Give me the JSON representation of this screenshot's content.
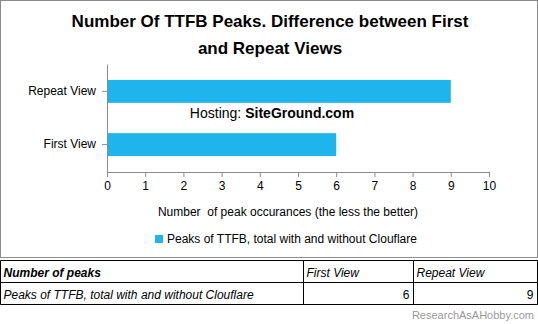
{
  "chart_data": {
    "type": "bar",
    "orientation": "horizontal",
    "title": "Number Of TTFB Peaks. Difference between First and Repeat Views",
    "categories": [
      "First View",
      "Repeat View"
    ],
    "series": [
      {
        "name": "Peaks of TTFB, total with and without Clouflare",
        "color": "#1fb4ec",
        "values": [
          6,
          9
        ]
      }
    ],
    "xlabel": "Number  of peak occurances (the less the better)",
    "xlim": [
      0,
      10
    ],
    "xticks": [
      0,
      1,
      2,
      3,
      4,
      5,
      6,
      7,
      8,
      9,
      10
    ],
    "grid": false,
    "legend": "bottom",
    "annotation": {
      "label": "Hosting:",
      "value": "SiteGround.com"
    }
  },
  "table": {
    "columns": [
      "Number of peaks",
      "First View",
      "Repeat View"
    ],
    "rows": [
      [
        "Peaks of TTFB, total with and without Clouflare",
        "6",
        "9"
      ]
    ]
  },
  "footer": "ResearchAsAHobby.com"
}
